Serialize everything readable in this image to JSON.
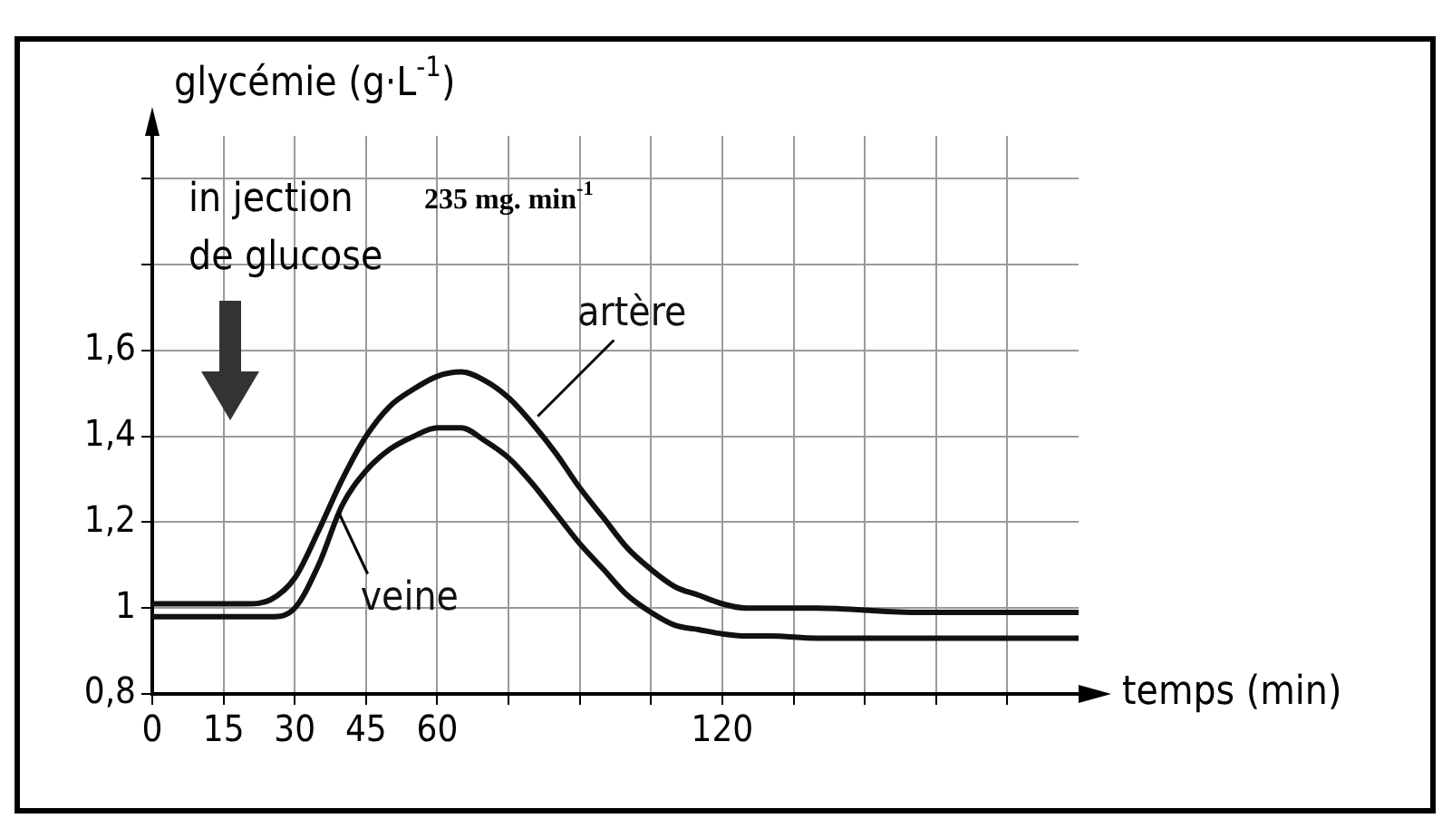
{
  "chart_data": {
    "type": "line",
    "xlabel": "temps (min)",
    "ylabel": "glycémie (g·L$^{-1}$)",
    "annotations": [
      "in jection\nde glucose",
      "235 mg. min$^{-1}$"
    ],
    "x": [
      0,
      10,
      20,
      25,
      30,
      35,
      40,
      45,
      50,
      55,
      60,
      65,
      70,
      75,
      80,
      85,
      90,
      95,
      100,
      105,
      110,
      115,
      120,
      125,
      130,
      140,
      160,
      195
    ],
    "series": [
      {
        "name": "artère",
        "color": "#111111",
        "values": [
          1.01,
          1.01,
          1.01,
          1.02,
          1.07,
          1.18,
          1.3,
          1.4,
          1.47,
          1.51,
          1.54,
          1.55,
          1.53,
          1.49,
          1.43,
          1.36,
          1.28,
          1.21,
          1.14,
          1.09,
          1.05,
          1.03,
          1.01,
          1.0,
          1.0,
          1.0,
          0.99,
          0.99
        ]
      },
      {
        "name": "veine",
        "color": "#111111",
        "values": [
          0.98,
          0.98,
          0.98,
          0.98,
          1.0,
          1.1,
          1.24,
          1.32,
          1.37,
          1.4,
          1.42,
          1.42,
          1.39,
          1.35,
          1.29,
          1.22,
          1.15,
          1.09,
          1.03,
          0.99,
          0.96,
          0.95,
          0.94,
          0.935,
          0.935,
          0.93,
          0.93,
          0.93
        ]
      }
    ],
    "xlim": [
      0,
      195
    ],
    "ylim": [
      0.8,
      2.1
    ],
    "xticks": [
      0,
      15,
      30,
      45,
      60,
      {
        "value": 75,
        "label": null
      },
      {
        "value": 90,
        "label": null
      },
      {
        "value": 105,
        "label": null
      },
      120,
      {
        "value": 135,
        "label": null
      },
      {
        "value": 150,
        "label": null
      },
      {
        "value": 165,
        "label": null
      },
      {
        "value": 180,
        "label": null
      }
    ],
    "yticks": [
      {
        "value": 0.8,
        "label": "0,8"
      },
      1,
      {
        "value": 1.2,
        "label": "1,2"
      },
      {
        "value": 1.4,
        "label": "1,4"
      },
      {
        "value": 1.6,
        "label": "1,6"
      },
      {
        "value": 1.8,
        "label": null
      },
      {
        "value": 2.0,
        "label": null
      }
    ],
    "grid": true,
    "legend": false,
    "marker": "none",
    "line_style": "solid"
  }
}
